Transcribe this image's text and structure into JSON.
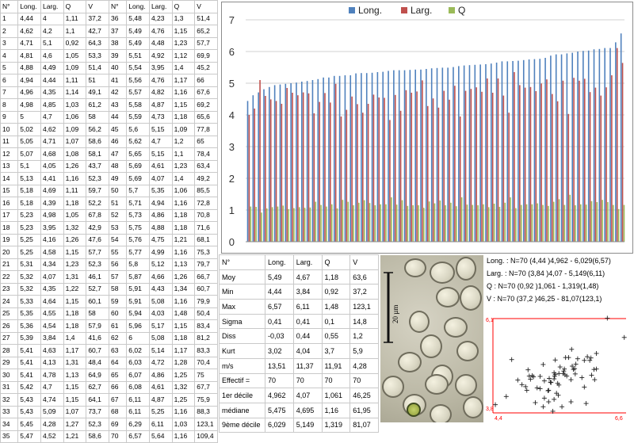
{
  "table": {
    "headers": [
      "N°",
      "Long.",
      "Larg.",
      "Q",
      "V",
      "N°",
      "Long.",
      "Larg.",
      "Q",
      "V"
    ],
    "left_rows": [
      [
        "1",
        "4,44",
        "4",
        "1,11",
        "37,2"
      ],
      [
        "2",
        "4,62",
        "4,2",
        "1,1",
        "42,7"
      ],
      [
        "3",
        "4,71",
        "5,1",
        "0,92",
        "64,3"
      ],
      [
        "4",
        "4,81",
        "4,6",
        "1,05",
        "53,3"
      ],
      [
        "5",
        "4,88",
        "4,49",
        "1,09",
        "51,4"
      ],
      [
        "6",
        "4,94",
        "4,44",
        "1,11",
        "51"
      ],
      [
        "7",
        "4,96",
        "4,35",
        "1,14",
        "49,1"
      ],
      [
        "8",
        "4,98",
        "4,85",
        "1,03",
        "61,2"
      ],
      [
        "9",
        "5",
        "4,7",
        "1,06",
        "58"
      ],
      [
        "10",
        "5,02",
        "4,62",
        "1,09",
        "56,2"
      ],
      [
        "11",
        "5,05",
        "4,71",
        "1,07",
        "58,6"
      ],
      [
        "12",
        "5,07",
        "4,68",
        "1,08",
        "58,1"
      ],
      [
        "13",
        "5,1",
        "4,05",
        "1,26",
        "43,7"
      ],
      [
        "14",
        "5,13",
        "4,41",
        "1,16",
        "52,3"
      ],
      [
        "15",
        "5,18",
        "4,69",
        "1,11",
        "59,7"
      ],
      [
        "16",
        "5,18",
        "4,39",
        "1,18",
        "52,2"
      ],
      [
        "17",
        "5,23",
        "4,98",
        "1,05",
        "67,8"
      ],
      [
        "18",
        "5,23",
        "3,95",
        "1,32",
        "42,9"
      ],
      [
        "19",
        "5,25",
        "4,16",
        "1,26",
        "47,6"
      ],
      [
        "20",
        "5,25",
        "4,58",
        "1,15",
        "57,7"
      ],
      [
        "21",
        "5,31",
        "4,34",
        "1,23",
        "52,3"
      ],
      [
        "22",
        "5,32",
        "4,07",
        "1,31",
        "46,1"
      ],
      [
        "23",
        "5,32",
        "4,35",
        "1,22",
        "52,7"
      ],
      [
        "24",
        "5,33",
        "4,64",
        "1,15",
        "60,1"
      ],
      [
        "25",
        "5,35",
        "4,55",
        "1,18",
        "58"
      ],
      [
        "26",
        "5,36",
        "4,54",
        "1,18",
        "57,9"
      ],
      [
        "27",
        "5,39",
        "3,84",
        "1,4",
        "41,6"
      ],
      [
        "28",
        "5,41",
        "4,63",
        "1,17",
        "60,7"
      ],
      [
        "29",
        "5,41",
        "4,13",
        "1,31",
        "48,4"
      ],
      [
        "30",
        "5,41",
        "4,78",
        "1,13",
        "64,9"
      ],
      [
        "31",
        "5,42",
        "4,7",
        "1,15",
        "62,7"
      ],
      [
        "32",
        "5,43",
        "4,74",
        "1,15",
        "64,1"
      ],
      [
        "33",
        "5,43",
        "5,09",
        "1,07",
        "73,7"
      ],
      [
        "34",
        "5,45",
        "4,28",
        "1,27",
        "52,3"
      ],
      [
        "35",
        "5,47",
        "4,52",
        "1,21",
        "58,6"
      ]
    ],
    "right_rows": [
      [
        "36",
        "5,48",
        "4,23",
        "1,3",
        "51,4"
      ],
      [
        "37",
        "5,49",
        "4,76",
        "1,15",
        "65,2"
      ],
      [
        "38",
        "5,49",
        "4,48",
        "1,23",
        "57,7"
      ],
      [
        "39",
        "5,51",
        "4,92",
        "1,12",
        "69,9"
      ],
      [
        "40",
        "5,54",
        "3,95",
        "1,4",
        "45,2"
      ],
      [
        "41",
        "5,56",
        "4,76",
        "1,17",
        "66"
      ],
      [
        "42",
        "5,57",
        "4,82",
        "1,16",
        "67,6"
      ],
      [
        "43",
        "5,58",
        "4,87",
        "1,15",
        "69,2"
      ],
      [
        "44",
        "5,59",
        "4,73",
        "1,18",
        "65,6"
      ],
      [
        "45",
        "5,6",
        "5,15",
        "1,09",
        "77,8"
      ],
      [
        "46",
        "5,62",
        "4,7",
        "1,2",
        "65"
      ],
      [
        "47",
        "5,65",
        "5,15",
        "1,1",
        "78,4"
      ],
      [
        "48",
        "5,69",
        "4,61",
        "1,23",
        "63,4"
      ],
      [
        "49",
        "5,69",
        "4,07",
        "1,4",
        "49,2"
      ],
      [
        "50",
        "5,7",
        "5,35",
        "1,06",
        "85,5"
      ],
      [
        "51",
        "5,71",
        "4,94",
        "1,16",
        "72,8"
      ],
      [
        "52",
        "5,73",
        "4,86",
        "1,18",
        "70,8"
      ],
      [
        "53",
        "5,75",
        "4,88",
        "1,18",
        "71,6"
      ],
      [
        "54",
        "5,76",
        "4,75",
        "1,21",
        "68,1"
      ],
      [
        "55",
        "5,77",
        "4,99",
        "1,16",
        "75,3"
      ],
      [
        "56",
        "5,8",
        "5,12",
        "1,13",
        "79,7"
      ],
      [
        "57",
        "5,87",
        "4,66",
        "1,26",
        "66,7"
      ],
      [
        "58",
        "5,91",
        "4,43",
        "1,34",
        "60,7"
      ],
      [
        "59",
        "5,91",
        "5,08",
        "1,16",
        "79,9"
      ],
      [
        "60",
        "5,94",
        "4,03",
        "1,48",
        "50,4"
      ],
      [
        "61",
        "5,96",
        "5,17",
        "1,15",
        "83,4"
      ],
      [
        "62",
        "6",
        "5,08",
        "1,18",
        "81,2"
      ],
      [
        "63",
        "6,02",
        "5,14",
        "1,17",
        "83,3"
      ],
      [
        "64",
        "6,03",
        "4,72",
        "1,28",
        "70,4"
      ],
      [
        "65",
        "6,07",
        "4,86",
        "1,25",
        "75"
      ],
      [
        "66",
        "6,08",
        "4,61",
        "1,32",
        "67,7"
      ],
      [
        "67",
        "6,11",
        "4,87",
        "1,25",
        "75,9"
      ],
      [
        "68",
        "6,11",
        "5,25",
        "1,16",
        "88,3"
      ],
      [
        "69",
        "6,29",
        "6,11",
        "1,03",
        "123,1"
      ],
      [
        "70",
        "6,57",
        "5,64",
        "1,16",
        "109,4"
      ]
    ]
  },
  "stats": {
    "headers": [
      "N°",
      "Long.",
      "Larg.",
      "Q",
      "V"
    ],
    "rows": [
      [
        "Moy",
        "5,49",
        "4,67",
        "1,18",
        "63,6"
      ],
      [
        "Min",
        "4,44",
        "3,84",
        "0,92",
        "37,2"
      ],
      [
        "Max",
        "6,57",
        "6,11",
        "1,48",
        "123,1"
      ],
      [
        "Sigma",
        "0,41",
        "0,41",
        "0,1",
        "14,8"
      ],
      [
        "Diss",
        "-0,03",
        "0,44",
        "0,55",
        "1,2"
      ],
      [
        "Kurt",
        "3,02",
        "4,04",
        "3,7",
        "5,9"
      ],
      [
        "m/s",
        "13,51",
        "11,37",
        "11,91",
        "4,28"
      ],
      [
        "Effectif =",
        "70",
        "70",
        "70",
        "70"
      ],
      [
        "1er décile",
        "4,962",
        "4,07",
        "1,061",
        "46,25"
      ],
      [
        "médiane",
        "5,475",
        "4,695",
        "1,16",
        "61,95"
      ],
      [
        "9ème décile",
        "6,029",
        "5,149",
        "1,319",
        "81,07"
      ]
    ]
  },
  "micrograph": {
    "scale_label": "20 µm"
  },
  "summary": [
    "Long. : N=70  (4,44 )4,962 - 6,029(6,57)",
    "Larg. : N=70  (3,84 )4,07 - 5,149(6,11)",
    "Q : N=70  (0,92 )1,061 - 1,319(1,48)",
    "V : N=70  (37,2 )46,25 - 81,07(123,1)"
  ],
  "chart_data": [
    {
      "type": "bar",
      "legend": [
        "Long.",
        "Larg.",
        "Q"
      ],
      "legend_position": "top",
      "colors": {
        "Long.": "#4f81bd",
        "Larg.": "#c0504d",
        "Q": "#9bbb59"
      },
      "ylim": [
        0,
        7
      ],
      "yticks": [
        "0",
        "1",
        "2",
        "3",
        "4",
        "5",
        "6",
        "7"
      ],
      "grid": true,
      "series_source": "table rows 1-70 (Long., Larg., Q)"
    },
    {
      "type": "scatter",
      "x_series": "Long.",
      "y_series": "Larg.",
      "xlim": [
        4.4,
        6.6
      ],
      "ylim": [
        3.8,
        6.1
      ],
      "xtick_labels": [
        "4,4",
        "6,6"
      ],
      "ytick_labels": [
        "3,8",
        "6,1"
      ],
      "marker": "+",
      "axis_color": "#ff0000"
    }
  ]
}
